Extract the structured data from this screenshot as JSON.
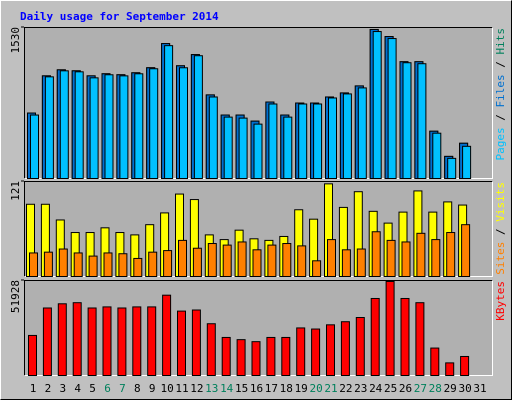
{
  "chart_data": [
    {
      "type": "bar",
      "title": "Daily usage for September 2014",
      "categories": [
        "1",
        "2",
        "3",
        "4",
        "5",
        "6",
        "7",
        "8",
        "9",
        "10",
        "11",
        "12",
        "13",
        "14",
        "15",
        "16",
        "17",
        "18",
        "19",
        "20",
        "21",
        "22",
        "23",
        "24",
        "25",
        "26",
        "27",
        "28",
        "29",
        "30",
        "31"
      ],
      "category_colors": [
        "#000000",
        "#000000",
        "#000000",
        "#000000",
        "#000000",
        "#00805C",
        "#00805C",
        "#000000",
        "#000000",
        "#000000",
        "#000000",
        "#000000",
        "#00805C",
        "#00805C",
        "#000000",
        "#000000",
        "#000000",
        "#000000",
        "#000000",
        "#00805C",
        "#00805C",
        "#000000",
        "#000000",
        "#000000",
        "#000000",
        "#000000",
        "#00805C",
        "#00805C",
        "#000000",
        "#000000",
        "#000000"
      ],
      "legend_separator": " / ",
      "ylim": [
        0,
        1530
      ],
      "yticks": [
        1530
      ],
      "series": [
        {
          "name": "Hits",
          "color": "#00805C",
          "values": [
            663,
            1040,
            1101,
            1091,
            1040,
            1061,
            1051,
            1071,
            1122,
            1367,
            1142,
            1255,
            847,
            643,
            643,
            581,
            775,
            643,
            765,
            765,
            826,
            867,
            938,
            1510,
            1438,
            1183,
            1183,
            479,
            224,
            357,
            null
          ]
        },
        {
          "name": "Files",
          "color": "#0070D0",
          "values": [
            663,
            1040,
            1101,
            1091,
            1040,
            1061,
            1051,
            1071,
            1122,
            1367,
            1142,
            1255,
            847,
            643,
            643,
            581,
            775,
            643,
            765,
            765,
            826,
            867,
            938,
            1510,
            1438,
            1183,
            1183,
            479,
            224,
            357,
            null
          ]
        },
        {
          "name": "Pages",
          "color": "#00C0FF",
          "values": [
            643,
            1030,
            1091,
            1081,
            1020,
            1051,
            1040,
            1061,
            1112,
            1346,
            1122,
            1244,
            826,
            622,
            612,
            551,
            755,
            622,
            755,
            755,
            816,
            857,
            918,
            1489,
            1418,
            1173,
            1163,
            459,
            204,
            326,
            null
          ]
        }
      ]
    },
    {
      "type": "bar",
      "ylim": [
        0,
        121
      ],
      "yticks": [
        121
      ],
      "series": [
        {
          "name": "Visits",
          "color": "#FFFF00",
          "values": [
            92,
            92,
            72,
            56,
            56,
            62,
            56,
            53,
            66,
            81,
            105,
            98,
            53,
            47,
            59,
            48,
            46,
            51,
            85,
            73,
            118,
            88,
            108,
            83,
            68,
            82,
            109,
            82,
            95,
            91,
            null
          ]
        },
        {
          "name": "Sites",
          "color": "#FF8000",
          "values": [
            30,
            31,
            35,
            30,
            26,
            30,
            29,
            23,
            31,
            33,
            46,
            36,
            42,
            40,
            44,
            34,
            40,
            42,
            39,
            20,
            47,
            34,
            35,
            57,
            46,
            44,
            55,
            47,
            56,
            66,
            null
          ]
        }
      ]
    },
    {
      "type": "bar",
      "ylim": [
        0,
        51928
      ],
      "yticks": [
        51928
      ],
      "series": [
        {
          "name": "KBytes",
          "color": "#FF0000",
          "values": [
            21900,
            36900,
            39200,
            39800,
            36900,
            37500,
            36900,
            37500,
            37500,
            43900,
            35200,
            35800,
            28300,
            20800,
            19600,
            18500,
            20800,
            20800,
            26000,
            25400,
            27700,
            29400,
            31700,
            42100,
            51400,
            42100,
            39800,
            15000,
            6900,
            10400,
            null
          ]
        }
      ]
    }
  ]
}
